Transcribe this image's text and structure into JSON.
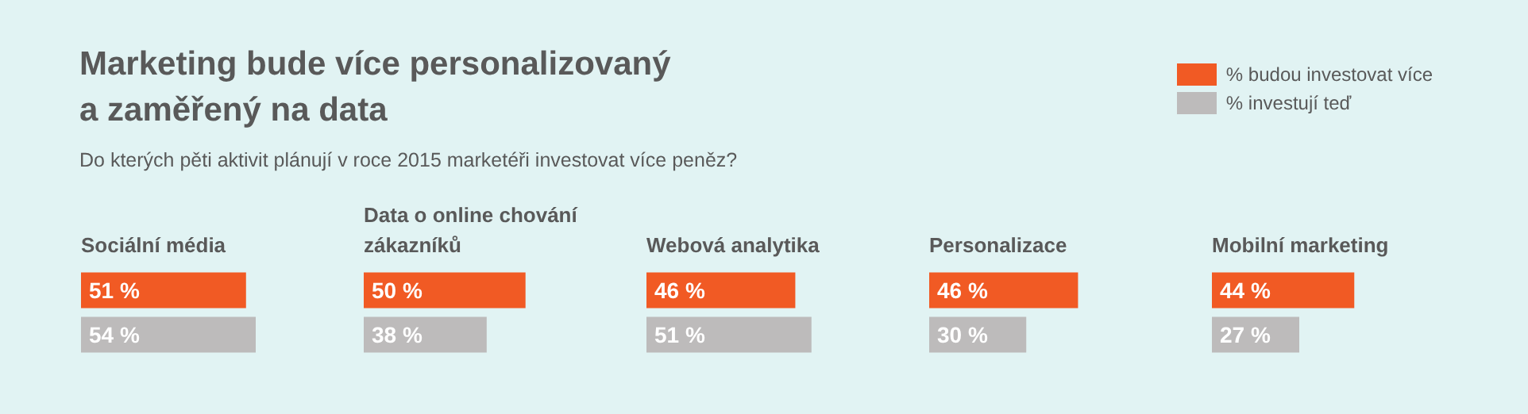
{
  "chart_data": [
    {
      "type": "other",
      "title": "Marketing bude více personalizovaný\na zaměřený na data",
      "subtitle": "Do kterých pěti aktivit plánují v roce 2015 marketéři investovat více peněz?"
    },
    {
      "type": "bar",
      "orientation": "horizontal",
      "title": "Sociální média",
      "categories": [
        null
      ],
      "legend": "top right",
      "series": [
        {
          "name": "% budou investovat více",
          "color": "#f15a24",
          "values": [
            51
          ],
          "value_labels": [
            "51 %"
          ]
        },
        {
          "name": "% investují teď",
          "color": "#bdbbbb",
          "values": [
            54
          ],
          "value_labels": [
            "54 %"
          ]
        }
      ]
    },
    {
      "type": "bar",
      "orientation": "horizontal",
      "title": "Data o online chování zákazníků",
      "categories": [
        null
      ],
      "series": [
        {
          "color": "#f15a24",
          "values": [
            50
          ],
          "value_labels": [
            "50 %"
          ]
        },
        {
          "color": "#bdbbbb",
          "values": [
            38
          ],
          "value_labels": [
            "38 %"
          ]
        }
      ]
    },
    {
      "type": "bar",
      "orientation": "horizontal",
      "title": "Webová analytika",
      "categories": [
        null
      ],
      "series": [
        {
          "color": "#f15a24",
          "values": [
            46
          ],
          "value_labels": [
            "46 %"
          ]
        },
        {
          "color": "#bdbbbb",
          "values": [
            51
          ],
          "value_labels": [
            "51 %"
          ]
        }
      ]
    },
    {
      "type": "bar",
      "orientation": "horizontal",
      "title": "Personalizace",
      "categories": [
        null
      ],
      "series": [
        {
          "color": "#f15a24",
          "values": [
            46
          ],
          "value_labels": [
            "46 %"
          ]
        },
        {
          "color": "#bdbbbb",
          "values": [
            30
          ],
          "value_labels": [
            "30 %"
          ]
        }
      ]
    },
    {
      "type": "bar",
      "orientation": "horizontal",
      "title": "Mobilní marketing",
      "categories": [
        null
      ],
      "series": [
        {
          "color": "#f15a24",
          "values": [
            44
          ],
          "value_labels": [
            "44 %"
          ]
        },
        {
          "color": "#bdbbbb",
          "values": [
            27
          ],
          "value_labels": [
            "27 %"
          ]
        }
      ]
    }
  ]
}
